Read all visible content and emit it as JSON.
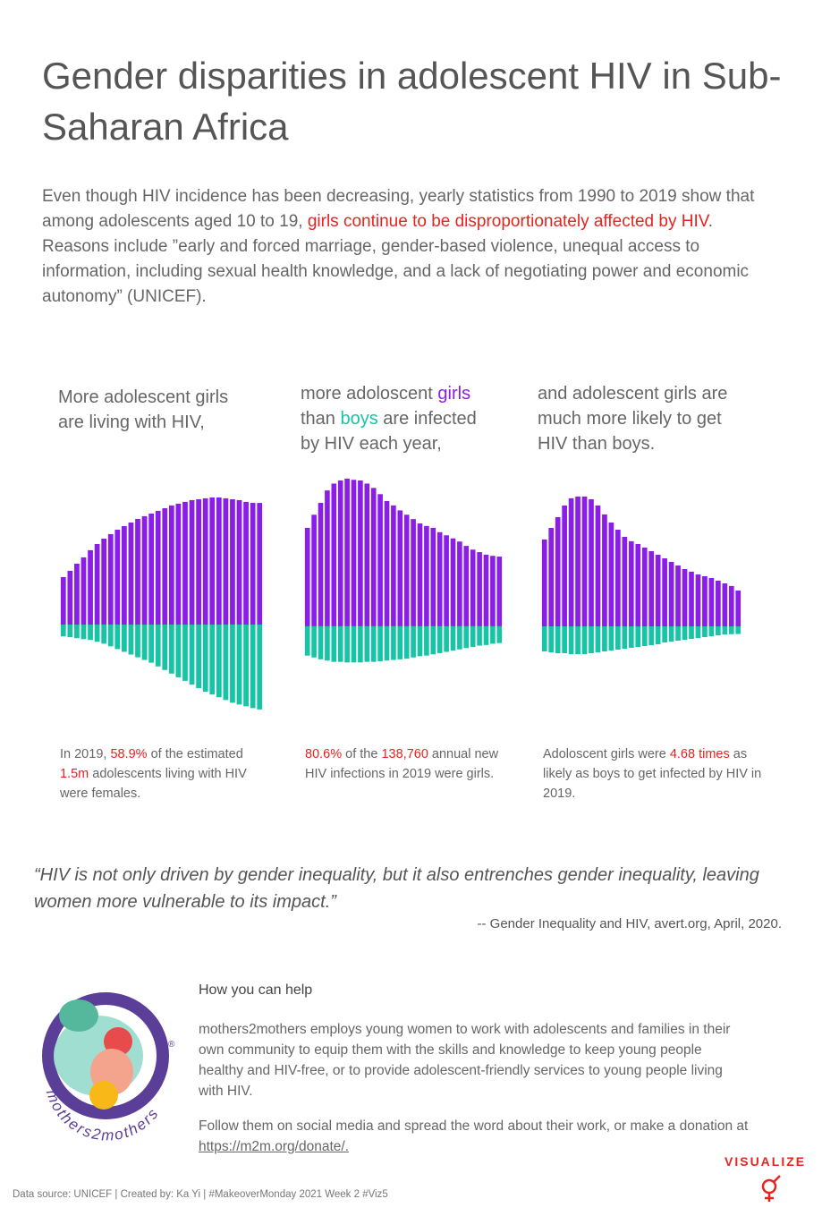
{
  "header": {
    "title": "Gender disparities in adolescent HIV in Sub-Saharan Africa",
    "intro": [
      "Even though HIV incidence has been decreasing, yearly statistics from 1990 to 2019 show that among adolescents aged 10 to 19, ",
      "girls continue to be disproportionately affected by HIV",
      ". Reasons include ”early and forced marriage, gender-based violence, unequal access to information, including sexual health knowledge, and a lack of negotiating power and economic autonomy” (UNICEF)."
    ]
  },
  "chart_data": [
    {
      "type": "diverging-bar",
      "subtitle": [
        "More adolescent girls are living with HIV,"
      ],
      "caption": [
        "In 2019, ",
        "58.9%",
        " of the estimated ",
        "1.5m",
        " adolescents living with HIV were females."
      ],
      "ylim": [
        -728000,
        1092000
      ],
      "series": [
        {
          "color": "#8a1ee6",
          "values": [
            345000,
            390000,
            442000,
            488000,
            540000,
            585000,
            624000,
            657000,
            689000,
            715000,
            741000,
            767000,
            787000,
            806000,
            826000,
            845000,
            865000,
            878000,
            891000,
            904000,
            910000,
            917000,
            923000,
            923000,
            917000,
            910000,
            904000,
            891000,
            884000,
            883500
          ]
        },
        {
          "color": "#17c4a6",
          "values": [
            86000,
            92000,
            99000,
            106000,
            112000,
            125000,
            139000,
            158000,
            178000,
            198000,
            218000,
            238000,
            257000,
            277000,
            304000,
            330000,
            356000,
            383000,
            409000,
            436000,
            462000,
            488000,
            508000,
            528000,
            548000,
            568000,
            581000,
            594000,
            607000,
            616500
          ]
        }
      ]
    },
    {
      "type": "diverging-bar",
      "subtitle": [
        "more adoloscent ",
        "girls",
        " than ",
        "boys",
        " are infected by HIV each year,"
      ],
      "caption": [
        "80.6%",
        " of the ",
        "138,760",
        " annual new HIV infections in 2019 were girls."
      ],
      "ylim": [
        -158000,
        244000
      ],
      "series": [
        {
          "color": "#8a1ee6",
          "values": [
            158000,
            179000,
            198000,
            218000,
            229000,
            234000,
            237000,
            235000,
            234000,
            229000,
            222000,
            212000,
            201000,
            194000,
            186000,
            179000,
            172000,
            165000,
            161000,
            158000,
            151000,
            146000,
            141000,
            136000,
            129000,
            123000,
            119000,
            115000,
            113000,
            111840
          ]
        },
        {
          "color": "#17c4a6",
          "values": [
            47000,
            50000,
            53000,
            55000,
            57000,
            57000,
            58000,
            58000,
            58000,
            57000,
            57000,
            56000,
            55000,
            54000,
            53000,
            52000,
            50000,
            48000,
            47000,
            45000,
            43000,
            41000,
            39000,
            37000,
            35000,
            33000,
            31000,
            30000,
            28000,
            26920
          ]
        }
      ]
    },
    {
      "type": "diverging-bar",
      "subtitle": [
        "and adolescent girls are much more likely to get HIV than boys."
      ],
      "caption": [
        "Adoloscent girls were ",
        "4.68 times",
        " as likely as boys to get infected by HIV in 2019."
      ],
      "ylim": [
        -6.05,
        9.35
      ],
      "series": [
        {
          "color": "#8a1ee6",
          "values": [
            5.34,
            6.05,
            6.71,
            7.43,
            7.87,
            7.98,
            7.98,
            7.81,
            7.43,
            6.88,
            6.38,
            5.94,
            5.5,
            5.23,
            5.06,
            4.84,
            4.62,
            4.4,
            4.18,
            3.96,
            3.74,
            3.52,
            3.36,
            3.19,
            3.08,
            2.97,
            2.81,
            2.64,
            2.48,
            2.2
          ]
        },
        {
          "color": "#17c4a6",
          "values": [
            1.54,
            1.6,
            1.65,
            1.65,
            1.71,
            1.71,
            1.71,
            1.65,
            1.6,
            1.54,
            1.49,
            1.43,
            1.38,
            1.32,
            1.27,
            1.21,
            1.16,
            1.1,
            0.99,
            0.94,
            0.88,
            0.83,
            0.77,
            0.72,
            0.66,
            0.61,
            0.55,
            0.5,
            0.48,
            0.47
          ]
        }
      ]
    }
  ],
  "quote": {
    "text": "“HIV is not only driven by gender inequality, but it also entrenches gender inequality, leaving women more vulnerable to its impact.”",
    "source": "-- Gender Inequality and HIV, avert.org, April, 2020."
  },
  "help": {
    "heading": "How you can help",
    "body": "mothers2mothers employs young women to work with adolescents and families in their own community to equip them with the skills and knowledge to keep young people healthy and HIV-free, or to provide adolescent-friendly services to young people living with HIV.",
    "follow": "Follow them on social media and spread the word about their work, or make a donation at ",
    "link": "https://m2m.org/donate/."
  },
  "logo": {
    "name": "mothers2mothers",
    "mark": "®"
  },
  "brand": "VISUALIZE",
  "footer": "Data source: UNICEF | Created by: Ka Yi | #MakeoverMonday 2021 Week 2 #Viz5"
}
